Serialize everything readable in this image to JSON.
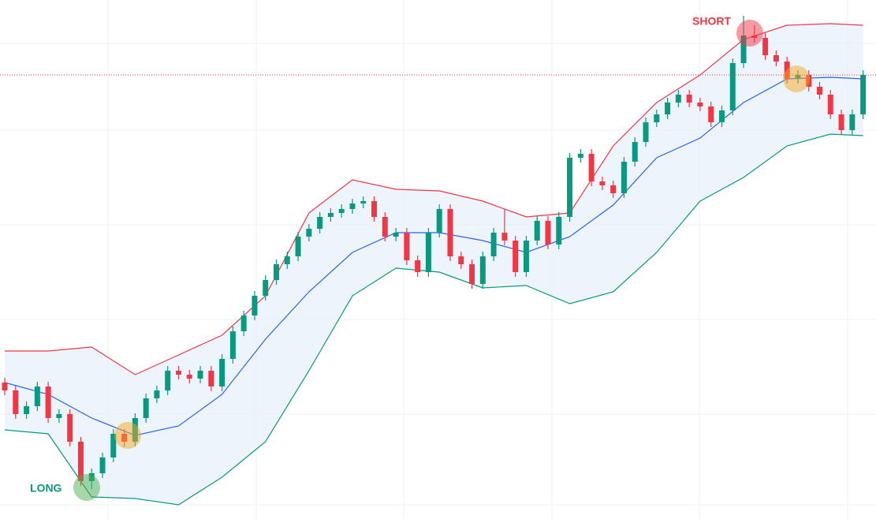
{
  "chart_data": {
    "type": "candlestick",
    "up_color": "#089981",
    "down_color": "#f23645",
    "open": [
      173,
      163,
      133,
      143,
      168,
      128,
      133,
      98,
      48,
      58,
      78,
      108,
      98,
      128,
      153,
      163,
      188,
      183,
      178,
      188,
      168,
      203,
      238,
      258,
      283,
      303,
      323,
      333,
      358,
      368,
      383,
      388,
      393,
      400,
      403,
      383,
      358,
      363,
      328,
      313,
      363,
      393,
      333,
      323,
      298,
      333,
      363,
      353,
      313,
      353,
      378,
      348,
      383,
      458,
      463,
      428,
      423,
      413,
      453,
      478,
      503,
      513,
      528,
      538,
      528,
      523,
      503,
      518,
      578,
      613,
      610,
      588,
      580,
      558,
      563,
      548,
      538,
      513,
      493,
      513
    ],
    "high": [
      179,
      169,
      149,
      174,
      174,
      139,
      139,
      104,
      64,
      84,
      114,
      114,
      134,
      159,
      169,
      194,
      194,
      189,
      194,
      194,
      209,
      244,
      264,
      289,
      309,
      329,
      339,
      364,
      374,
      389,
      394,
      399,
      406,
      409,
      409,
      389,
      369,
      369,
      334,
      369,
      399,
      399,
      339,
      329,
      339,
      369,
      393,
      359,
      359,
      384,
      384,
      389,
      464,
      469,
      469,
      434,
      429,
      459,
      484,
      509,
      519,
      534,
      544,
      544,
      534,
      529,
      524,
      584,
      638,
      626,
      616,
      594,
      586,
      569,
      569,
      554,
      544,
      519,
      519,
      569
    ],
    "low": [
      157,
      127,
      127,
      137,
      122,
      122,
      92,
      42,
      38,
      52,
      72,
      92,
      92,
      122,
      147,
      157,
      177,
      172,
      172,
      162,
      162,
      197,
      232,
      252,
      277,
      297,
      317,
      327,
      352,
      362,
      377,
      382,
      387,
      394,
      377,
      352,
      352,
      322,
      307,
      307,
      357,
      327,
      317,
      292,
      292,
      327,
      347,
      307,
      307,
      347,
      342,
      342,
      377,
      452,
      422,
      417,
      407,
      407,
      447,
      472,
      497,
      507,
      522,
      522,
      517,
      497,
      497,
      512,
      572,
      604,
      582,
      574,
      552,
      552,
      542,
      532,
      507,
      487,
      487,
      507
    ],
    "close": [
      163,
      133,
      143,
      168,
      128,
      133,
      98,
      48,
      58,
      78,
      108,
      98,
      128,
      153,
      163,
      188,
      183,
      178,
      188,
      168,
      203,
      238,
      258,
      283,
      303,
      323,
      333,
      358,
      368,
      383,
      388,
      393,
      400,
      403,
      383,
      358,
      363,
      328,
      313,
      363,
      393,
      333,
      323,
      298,
      333,
      363,
      353,
      313,
      353,
      378,
      348,
      383,
      458,
      463,
      428,
      423,
      413,
      453,
      478,
      503,
      513,
      528,
      538,
      528,
      523,
      503,
      518,
      578,
      613,
      610,
      588,
      580,
      558,
      563,
      548,
      538,
      513,
      493,
      513,
      563
    ],
    "bands": {
      "x": [
        0,
        4,
        8,
        12,
        16,
        20,
        24,
        28,
        32,
        36,
        40,
        44,
        48,
        52,
        56,
        60,
        64,
        68,
        72,
        76,
        79
      ],
      "upper": [
        213,
        213,
        218,
        183,
        208,
        233,
        283,
        388,
        430,
        418,
        416,
        403,
        383,
        388,
        473,
        528,
        563,
        608,
        626,
        628,
        626
      ],
      "middle": [
        173,
        158,
        128,
        106,
        118,
        158,
        228,
        288,
        338,
        363,
        363,
        353,
        338,
        358,
        398,
        458,
        483,
        528,
        558,
        560,
        558
      ],
      "lower": [
        113,
        108,
        28,
        26,
        18,
        53,
        98,
        188,
        283,
        318,
        313,
        293,
        296,
        273,
        288,
        338,
        403,
        433,
        473,
        488,
        486
      ],
      "upper_color": "#f23645",
      "middle_color": "#2962ff",
      "lower_color": "#089981",
      "fill_color": "#e8f1fb"
    },
    "annotations": [
      {
        "text": "LONG",
        "color": "#089981"
      },
      {
        "text": "SHORT",
        "color": "#f23645"
      }
    ],
    "ylim": [
      0,
      658
    ]
  }
}
